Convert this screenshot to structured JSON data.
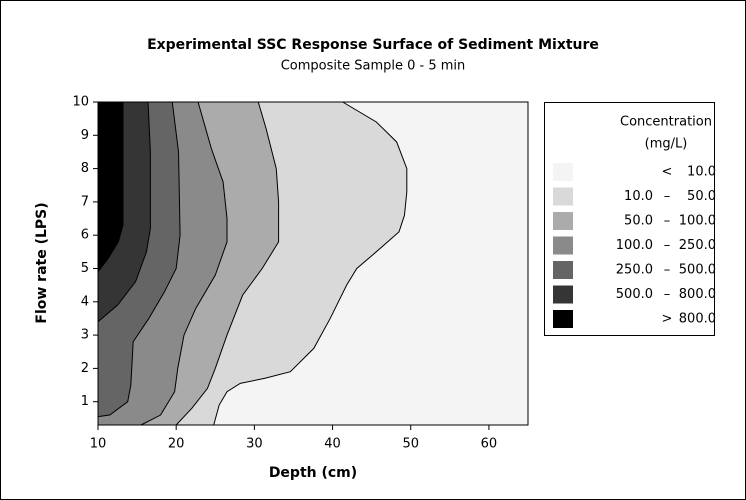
{
  "chart_data": {
    "type": "contour",
    "title": "Experimental SSC Response Surface of Sediment Mixture",
    "subtitle": "Composite Sample 0 - 5 min",
    "x_label": "Depth (cm)",
    "y_label": "Flow rate (LPS)",
    "xlim": [
      10,
      65
    ],
    "ylim": [
      0.3,
      10
    ],
    "xticks": [
      10,
      20,
      30,
      40,
      50,
      60
    ],
    "yticks": [
      1,
      2,
      3,
      4,
      5,
      6,
      7,
      8,
      9,
      10
    ],
    "legend_title": [
      "Concentration",
      "(mg/L)"
    ],
    "bins": [
      {
        "sep": "<",
        "upper": "10.0",
        "color": "#f4f4f4"
      },
      {
        "lower": "10.0",
        "sep": "–",
        "upper": "50.0",
        "color": "#d9d9d9"
      },
      {
        "lower": "50.0",
        "sep": "–",
        "upper": "100.0",
        "color": "#ababab"
      },
      {
        "lower": "100.0",
        "sep": "–",
        "upper": "250.0",
        "color": "#8a8a8a"
      },
      {
        "lower": "250.0",
        "sep": "–",
        "upper": "500.0",
        "color": "#656565"
      },
      {
        "lower": "500.0",
        "sep": "–",
        "upper": "800.0",
        "color": "#353535"
      },
      {
        "sep": ">",
        "upper": "800.0",
        "color": "#000000"
      }
    ],
    "contours": [
      {
        "x": [
          41.3,
          45.6,
          48.2,
          49.5,
          49.5,
          49.2,
          48.5,
          45.1,
          43.1,
          41.8,
          39.7,
          37.6,
          34.6,
          31.3,
          28.2,
          26.5,
          25.5,
          24.8
        ],
        "y": [
          10,
          9.4,
          8.8,
          8.0,
          7.3,
          6.6,
          6.1,
          5.4,
          5.0,
          4.5,
          3.5,
          2.6,
          1.9,
          1.7,
          1.55,
          1.3,
          0.9,
          0.3
        ]
      },
      {
        "x": [
          30.5,
          31.5,
          32.8,
          33.1,
          33.1,
          31,
          28.5,
          26.5,
          25,
          24,
          22,
          20
        ],
        "y": [
          10,
          9.2,
          8,
          7,
          5.8,
          5,
          4.2,
          3,
          2,
          1.4,
          0.8,
          0.3
        ]
      },
      {
        "x": [
          22.8,
          24.5,
          26,
          26.5,
          26.5,
          25,
          22.5,
          21,
          20.2,
          19.8,
          18,
          15.5
        ],
        "y": [
          10,
          8.6,
          7.6,
          6.5,
          5.8,
          4.8,
          3.8,
          3,
          2,
          1.3,
          0.6,
          0.3
        ]
      },
      {
        "x": [
          19.5,
          20.3,
          20.5,
          20,
          18.5,
          16.5,
          14.5,
          14.2,
          13.8,
          11.5,
          10
        ],
        "y": [
          10,
          8.5,
          6,
          5,
          4.3,
          3.5,
          2.8,
          1.5,
          1.0,
          0.6,
          0.55
        ]
      },
      {
        "x": [
          16.4,
          16.7,
          16.7,
          16.2,
          14.8,
          12.5,
          10
        ],
        "y": [
          10,
          8.5,
          6.2,
          5.5,
          4.6,
          3.9,
          3.4
        ]
      },
      {
        "x": [
          13.2,
          13.2,
          12.6,
          11.3,
          10
        ],
        "y": [
          10,
          6.3,
          5.8,
          5.3,
          4.9
        ]
      }
    ]
  }
}
